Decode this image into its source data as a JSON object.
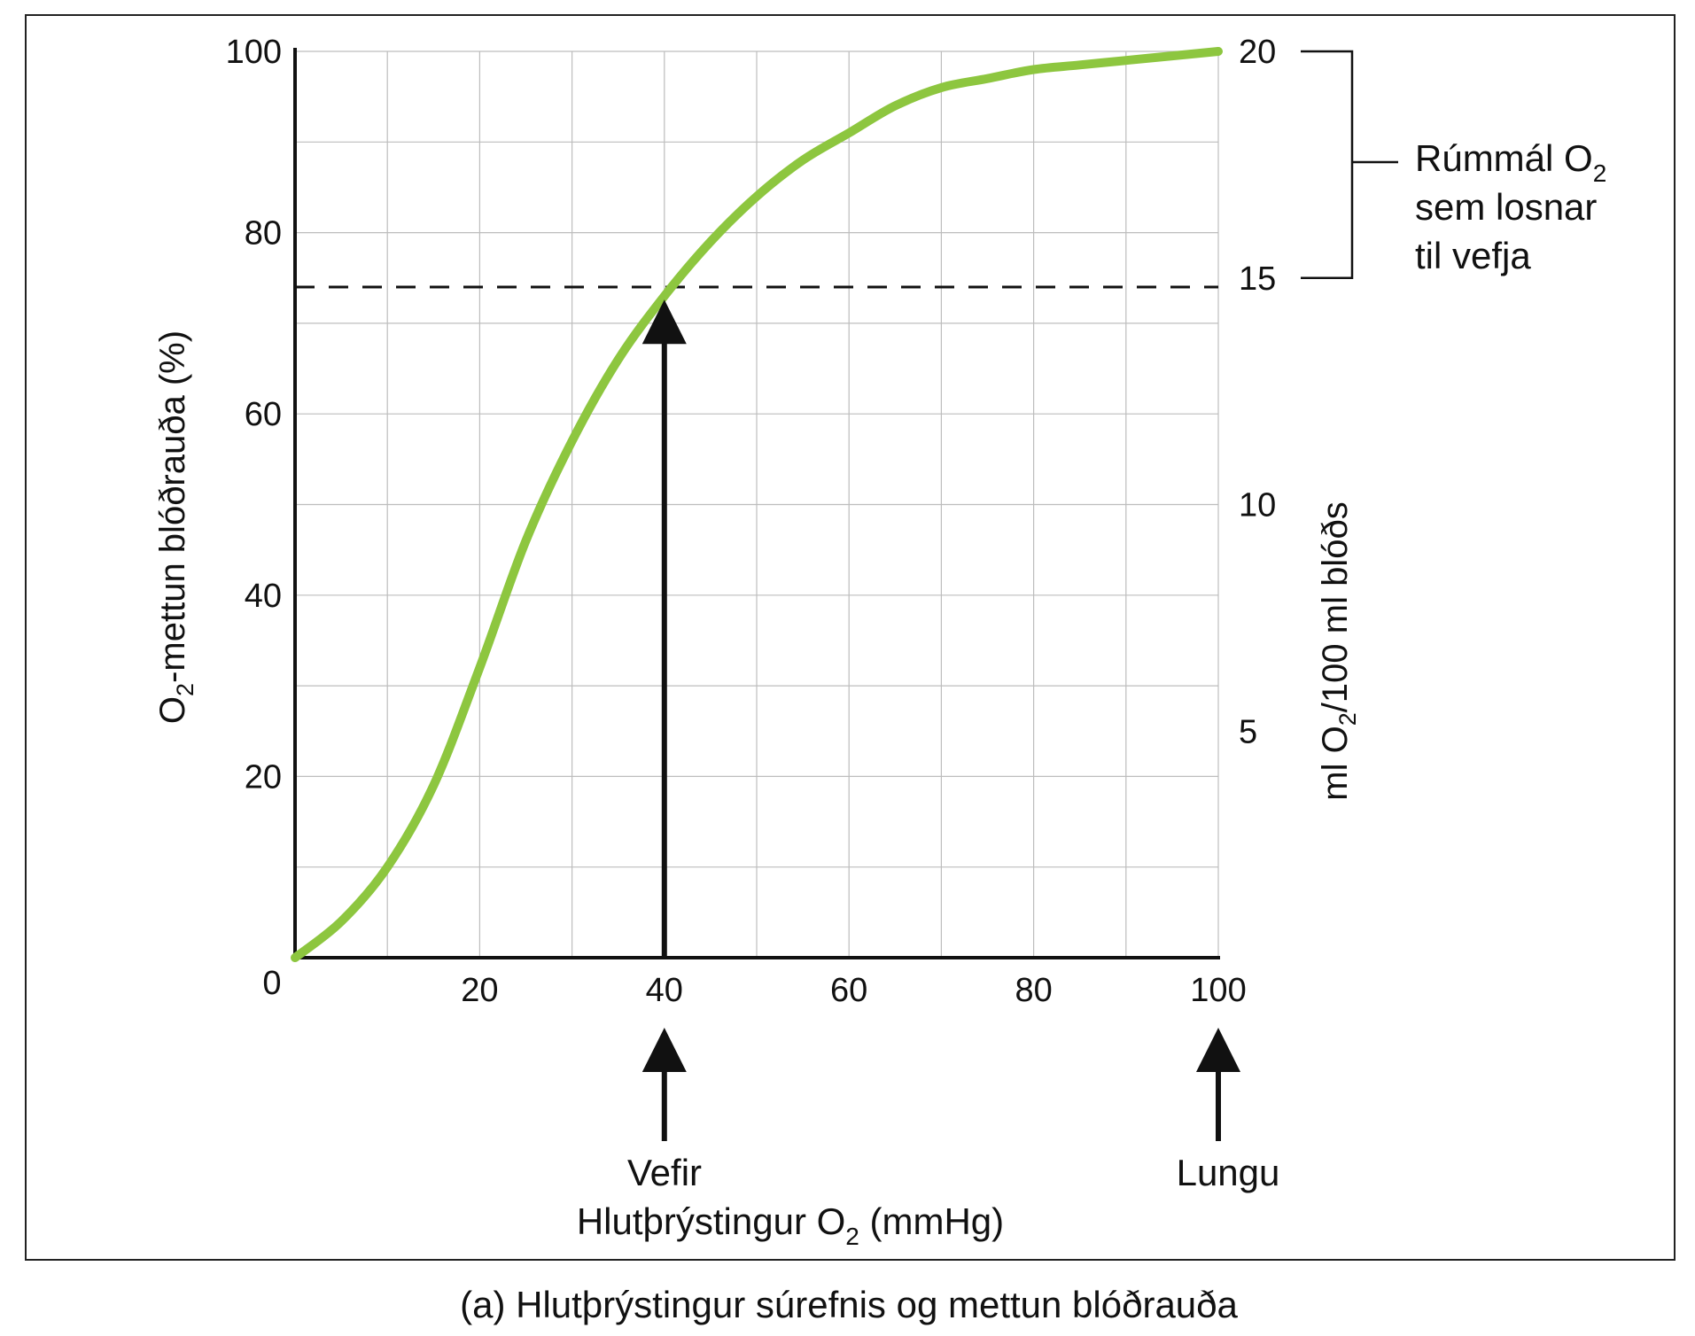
{
  "chart_data": {
    "type": "line",
    "caption": "(a) Hlutþrýstingur súrefnis og mettun blóðrauða",
    "xlabel_prefix": "Hlutþrýstingur O",
    "xlabel_sub": "2",
    "xlabel_suffix": " (mmHg)",
    "ylabel_prefix": "O",
    "ylabel_sub": "2",
    "ylabel_suffix": "-mettun blóðrauða (%)",
    "y2label_prefix": "ml O",
    "y2label_sub": "2",
    "y2label_suffix": "/100 ml blóðs",
    "xlim": [
      0,
      100
    ],
    "ylim": [
      0,
      100
    ],
    "y2lim": [
      0,
      20
    ],
    "x_ticks": [
      20,
      40,
      60,
      80,
      100
    ],
    "y_ticks": [
      20,
      40,
      60,
      80,
      100
    ],
    "y2_ticks": [
      5,
      10,
      15,
      20
    ],
    "origin_label": "0",
    "x_grid_step": 10,
    "y_grid_step": 10,
    "grid": true,
    "curve_color": "#8dc63f",
    "series": [
      {
        "x": [
          0,
          5,
          10,
          15,
          20,
          25,
          30,
          35,
          40,
          45,
          50,
          55,
          60,
          65,
          70,
          75,
          80,
          85,
          90,
          95,
          100
        ],
        "y": [
          0,
          4,
          10,
          19,
          32,
          46,
          57,
          66,
          73,
          79,
          84,
          88,
          91,
          94,
          96,
          97,
          98,
          98.5,
          99,
          99.5,
          100
        ]
      }
    ],
    "dashed_line_y": 74,
    "arrow_at_x": 40,
    "annotations": {
      "vefir": "Vefir",
      "lungu": "Lungu",
      "bracket_line1_prefix": "Rúmmál O",
      "bracket_line1_sub": "2",
      "bracket_line2": "sem losnar",
      "bracket_line3": "til vefja"
    }
  }
}
